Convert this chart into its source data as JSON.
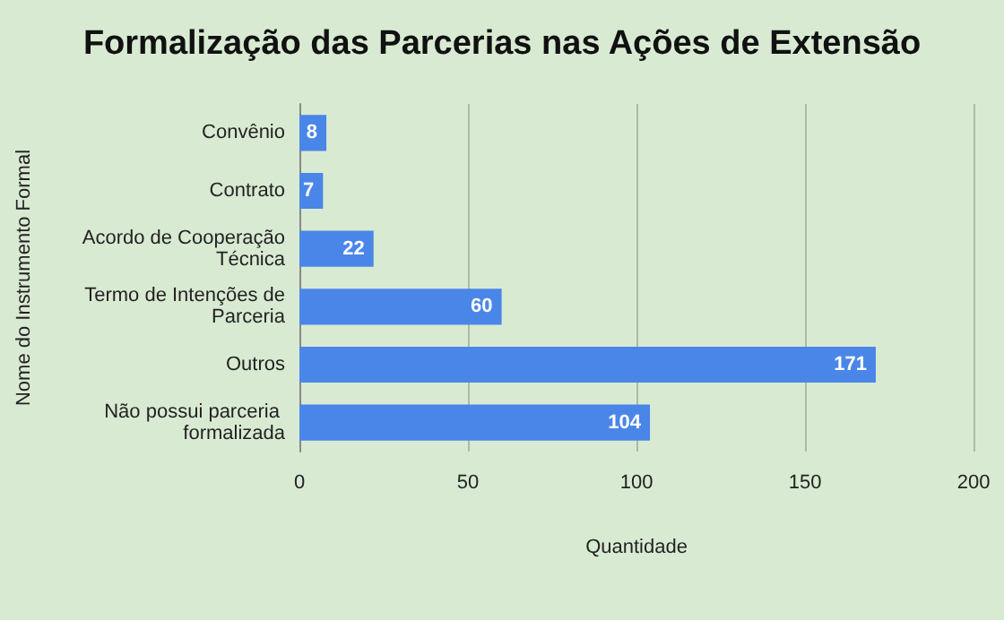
{
  "chart_data": {
    "type": "bar",
    "orientation": "horizontal",
    "title": "Formalização das Parcerias nas Ações de Extensão",
    "xlabel": "Quantidade",
    "ylabel": "Nome do Instrumento Formal",
    "categories": [
      "Convênio",
      "Contrato",
      "Acordo de Cooperação Técnica",
      "Termo de Intenções de Parceria",
      "Outros",
      "Não possui parceria formalizada"
    ],
    "values": [
      8,
      7,
      22,
      60,
      171,
      104
    ],
    "color": "#4a86e8",
    "xlim": [
      0,
      200
    ],
    "xticks": [
      0,
      50,
      100,
      150,
      200
    ],
    "grid": "x",
    "data_labels": true
  }
}
